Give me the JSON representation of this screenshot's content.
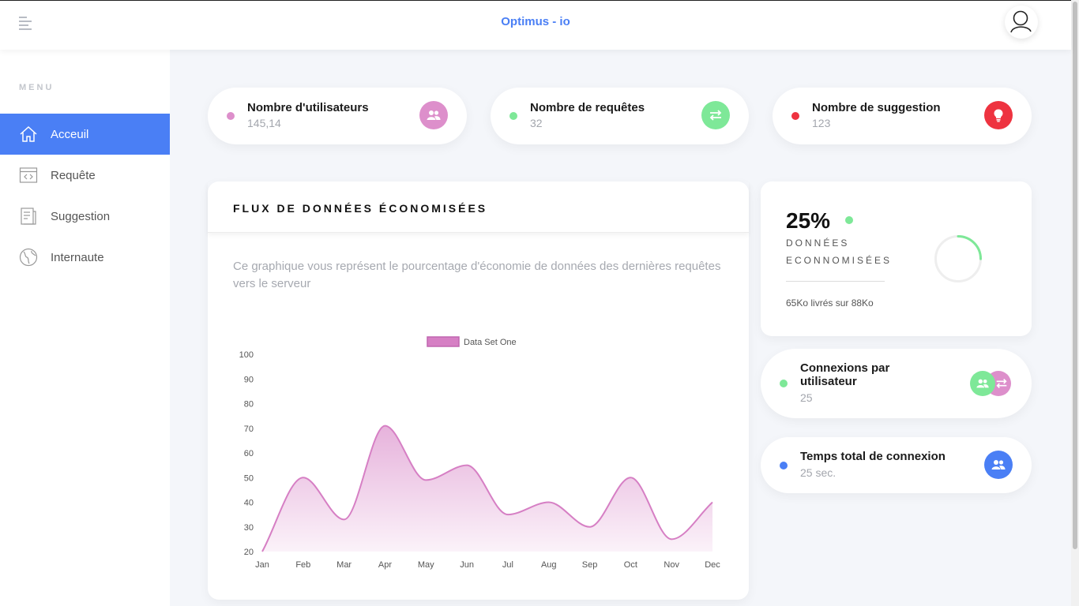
{
  "header": {
    "title": "Optimus - io"
  },
  "sidebar": {
    "menu_label": "MENU",
    "items": [
      {
        "label": "Acceuil",
        "icon": "home-icon",
        "active": true
      },
      {
        "label": "Requête",
        "icon": "code-window-icon",
        "active": false
      },
      {
        "label": "Suggestion",
        "icon": "document-icon",
        "active": false
      },
      {
        "label": "Internaute",
        "icon": "globe-icon",
        "active": false
      }
    ]
  },
  "stats": [
    {
      "title": "Nombre d'utilisateurs",
      "value": "145,14",
      "dot_color": "#dd8fcb",
      "icon": "users-icon",
      "icon_color": "#dd8fcb"
    },
    {
      "title": "Nombre de requêtes",
      "value": "32",
      "dot_color": "#7ee898",
      "icon": "swap-arrows-icon",
      "icon_color": "#7ee898"
    },
    {
      "title": "Nombre de suggestion",
      "value": "123",
      "dot_color": "#ee3340",
      "icon": "lightbulb-icon",
      "icon_color": "#ee3340"
    }
  ],
  "chart_card": {
    "title": "FLUX DE DONNÉES ÉCONOMISÉES",
    "description": "Ce graphique vous représent le pourcentage d'économie de données des dernières requêtes vers le serveur"
  },
  "chart_data": {
    "type": "area",
    "categories": [
      "Jan",
      "Feb",
      "Mar",
      "Apr",
      "May",
      "Jun",
      "Jul",
      "Aug",
      "Sep",
      "Oct",
      "Nov",
      "Dec"
    ],
    "series": [
      {
        "name": "Data Set One",
        "values": [
          20,
          50,
          33,
          71,
          49,
          55,
          35,
          40,
          30,
          50,
          25,
          40
        ],
        "color": "#d67fc4"
      }
    ],
    "yticks": [
      20,
      30,
      40,
      50,
      60,
      70,
      80,
      90,
      100
    ],
    "ylim": [
      20,
      100
    ],
    "legend_position": "top-center",
    "grid": false,
    "smooth": true
  },
  "donut_card": {
    "percent_label": "25%",
    "percent_value": 25,
    "label_line1": "DONNÉES",
    "label_line2": "ECONNOMISÉES",
    "detail": "65Ko livrés sur 88Ko",
    "accent_color": "#7ee898"
  },
  "connexions_card": {
    "title_line1": "Connexions par",
    "title_line2": "utilisateur",
    "value": "25",
    "dot_color": "#7ee898",
    "icons": [
      "users-icon",
      "swap-arrows-icon"
    ]
  },
  "temps_card": {
    "title": "Temps total de connexion",
    "value": "25 sec.",
    "dot_color": "#4a7ff5",
    "icon": "users-icon",
    "icon_color": "#4a7ff5"
  }
}
